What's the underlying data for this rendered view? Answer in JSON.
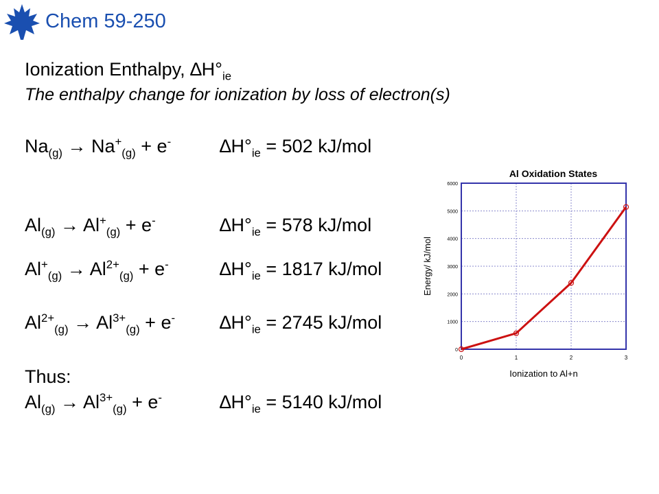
{
  "header": {
    "course": "Chem 59-250",
    "logo_icon": "maple-leaf-icon",
    "logo_color": "#1a4fb0"
  },
  "slide": {
    "title_text": "Ionization Enthalpy, ",
    "title_symbol": "∆H°",
    "title_sub": "ie",
    "subtitle": "The enthalpy change for ionization by loss of electron(s)"
  },
  "equations": [
    {
      "reactant": "Na",
      "reactant_sup": "",
      "reactant_sub": "(g)",
      "arrow": "→",
      "product": "Na",
      "product_sup": "+",
      "product_sub": "(g)",
      "electron": "e",
      "electron_sup": "-",
      "dh": "∆H°",
      "dh_sub": "ie",
      "value": "= 502 kJ/mol"
    },
    {
      "reactant": "Al",
      "reactant_sup": "",
      "reactant_sub": "(g)",
      "arrow": "→",
      "product": "Al",
      "product_sup": "+",
      "product_sub": "(g)",
      "electron": "e",
      "electron_sup": "-",
      "dh": "∆H°",
      "dh_sub": "ie",
      "value": "= 578 kJ/mol"
    },
    {
      "reactant": "Al",
      "reactant_sup": "+",
      "reactant_sub": "(g)",
      "arrow": "→",
      "product": "Al",
      "product_sup": "2+",
      "product_sub": "(g)",
      "electron": "e",
      "electron_sup": "-",
      "dh": "∆H°",
      "dh_sub": "ie",
      "value": "= 1817 kJ/mol"
    },
    {
      "reactant": "Al",
      "reactant_sup": "2+",
      "reactant_sub": "(g)",
      "arrow": "→",
      "product": "Al",
      "product_sup": "3+",
      "product_sub": "(g)",
      "electron": "e",
      "electron_sup": "-",
      "dh": "∆H°",
      "dh_sub": "ie",
      "value": "= 2745 kJ/mol"
    }
  ],
  "thus_label": "Thus:",
  "summary": {
    "reactant": "Al",
    "reactant_sup": "",
    "reactant_sub": "(g)",
    "arrow": "→",
    "product": "Al",
    "product_sup": "3+",
    "product_sub": "(g)",
    "electron": "e",
    "electron_sup": "-",
    "dh": "∆H°",
    "dh_sub": "ie",
    "value": "= 5140 kJ/mol"
  },
  "chart_data": {
    "type": "line",
    "title": "Al Oxidation States",
    "xlabel": "Ionization to Al+n",
    "ylabel": "Energy/ kJ/mol",
    "x": [
      0,
      1,
      2,
      3
    ],
    "series": [
      {
        "values": [
          0,
          578,
          2395,
          5140
        ],
        "color": "#cc1111"
      }
    ],
    "xlim": [
      0,
      3
    ],
    "ylim": [
      0,
      6000
    ],
    "xticks": [
      "0",
      "1",
      "2",
      "3"
    ],
    "yticks": [
      "0",
      "1000",
      "2000",
      "3000",
      "4000",
      "5000",
      "6000"
    ],
    "grid": true,
    "frame_color": "#3333aa",
    "grid_color": "#8888cc"
  }
}
